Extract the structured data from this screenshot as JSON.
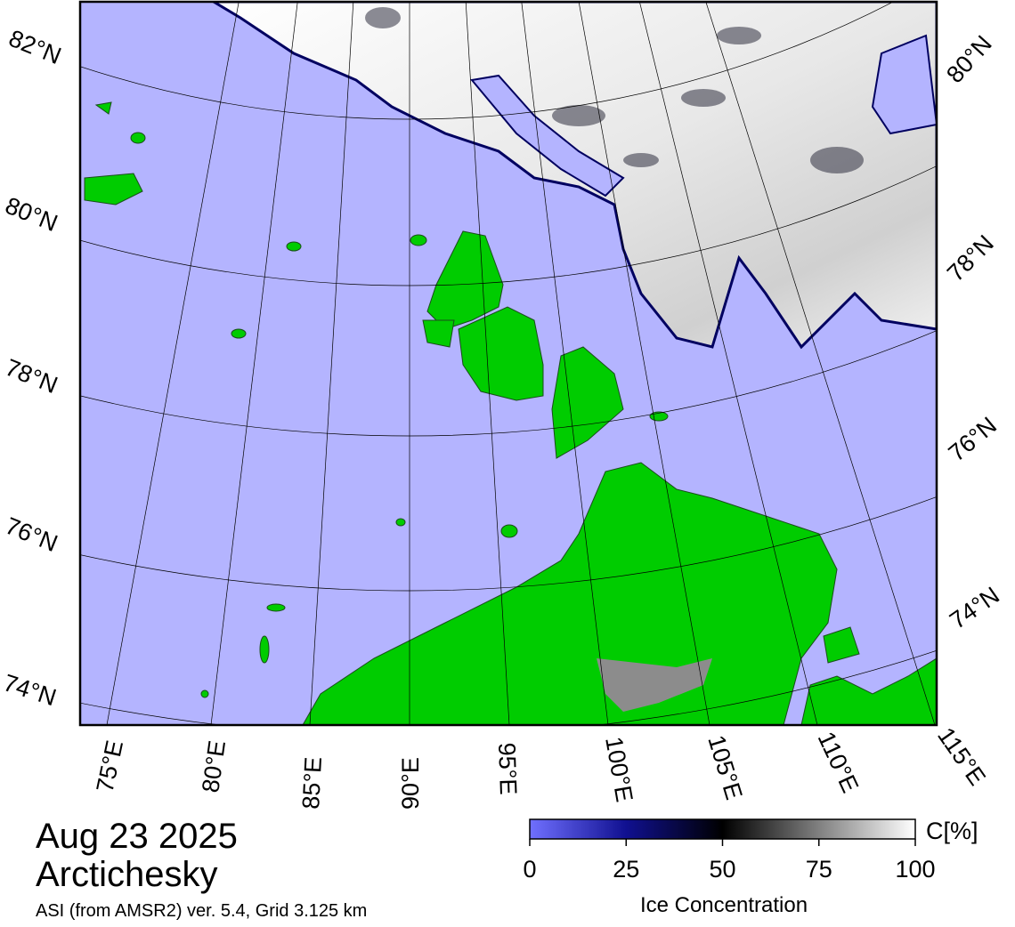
{
  "map": {
    "left_lat_labels": [
      "82°N",
      "80°N",
      "78°N",
      "76°N",
      "74°N"
    ],
    "right_lat_labels": [
      "80°N",
      "78°N",
      "76°N",
      "74°N"
    ],
    "lon_labels": [
      "75°E",
      "80°E",
      "85°E",
      "90°E",
      "95°E",
      "100°E",
      "105°E",
      "110°E",
      "115°E"
    ]
  },
  "caption": {
    "date": "Aug 23 2025",
    "region": "Arctichesky",
    "source": "ASI (from AMSR2) ver. 5.4,  Grid 3.125 km"
  },
  "colorbar": {
    "label": "Ice Concentration",
    "unit": "C[%]",
    "range": [
      0,
      100
    ],
    "ticks": [
      0,
      25,
      50,
      75,
      100
    ]
  }
}
